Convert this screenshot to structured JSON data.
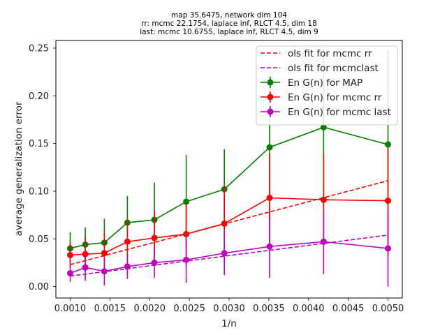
{
  "chart_data": {
    "type": "line",
    "title_lines": [
      "map 35.6475, network dim 104",
      "rr: mcmc 22.1754, laplace inf, RLCT 4.5, dim 18",
      "last: mcmc 10.6755, laplace inf, RLCT 4.5, dim 9"
    ],
    "xlabel": "1/n",
    "ylabel": "average generalization error",
    "xlim": [
      0.00082,
      0.00518
    ],
    "ylim": [
      -0.012,
      0.258
    ],
    "x_ticks": [
      0.001,
      0.0015,
      0.002,
      0.0025,
      0.003,
      0.0035,
      0.004,
      0.0045,
      0.005
    ],
    "x_tick_labels": [
      "0.0010",
      "0.0015",
      "0.0020",
      "0.0025",
      "0.0030",
      "0.0035",
      "0.0040",
      "0.0045",
      "0.0050"
    ],
    "y_ticks": [
      0.0,
      0.05,
      0.1,
      0.15,
      0.2,
      0.25
    ],
    "y_tick_labels": [
      "0.00",
      "0.05",
      "0.10",
      "0.15",
      "0.20",
      "0.25"
    ],
    "grid": false,
    "legend_position": "top-right",
    "x": [
      0.001,
      0.00119,
      0.00143,
      0.00172,
      0.00206,
      0.00246,
      0.00294,
      0.00351,
      0.00419,
      0.005
    ],
    "series": [
      {
        "name": "En G(n) for MAP",
        "color": "#008000",
        "kind": "errorbar",
        "values": [
          0.04,
          0.044,
          0.046,
          0.067,
          0.07,
          0.089,
          0.102,
          0.146,
          0.167,
          0.149
        ],
        "errors": [
          0.017,
          0.018,
          0.025,
          0.028,
          0.039,
          0.049,
          0.042,
          0.076,
          0.082,
          0.099
        ]
      },
      {
        "name": "En G(n) for mcmc rr",
        "color": "#ff0000",
        "kind": "errorbar",
        "values": [
          0.033,
          0.034,
          0.035,
          0.047,
          0.051,
          0.055,
          0.066,
          0.093,
          0.091,
          0.09
        ],
        "errors": [
          0.013,
          0.018,
          0.021,
          0.024,
          0.029,
          0.033,
          0.04,
          0.047,
          0.048,
          0.057
        ]
      },
      {
        "name": "En G(n) for mcmc last",
        "color": "#bf00bf",
        "kind": "errorbar",
        "values": [
          0.014,
          0.02,
          0.016,
          0.021,
          0.025,
          0.028,
          0.035,
          0.042,
          0.047,
          0.04
        ],
        "errors": [
          0.009,
          0.014,
          0.015,
          0.013,
          0.016,
          0.024,
          0.023,
          0.033,
          0.034,
          0.04
        ]
      },
      {
        "name": "ols fit for mcmc rr",
        "color": "#ff0000",
        "kind": "dashed",
        "endpoints_x": [
          0.001,
          0.005
        ],
        "endpoints_y": [
          0.023,
          0.111
        ]
      },
      {
        "name": "ols fit for mcmclast",
        "color": "#bf00bf",
        "kind": "dashed",
        "endpoints_x": [
          0.001,
          0.005
        ],
        "endpoints_y": [
          0.011,
          0.054
        ]
      }
    ],
    "legend_order": [
      "ols fit for mcmc rr",
      "ols fit for mcmclast",
      "En G(n) for MAP",
      "En G(n) for mcmc rr",
      "En G(n) for mcmc last"
    ]
  }
}
